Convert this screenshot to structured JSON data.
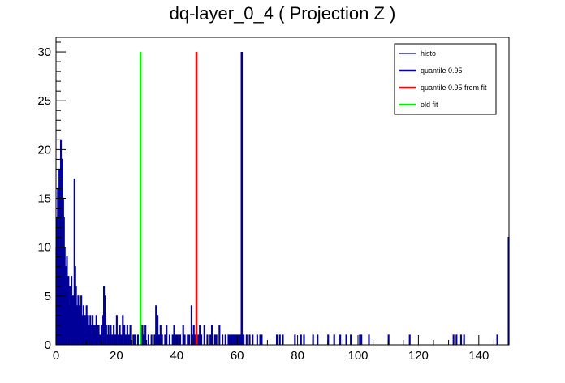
{
  "chart_data": {
    "type": "bar",
    "title": "dq-layer_0_4 ( Projection Z )",
    "xlabel": "",
    "ylabel": "",
    "xlim": [
      0,
      150
    ],
    "ylim": [
      0,
      31.5
    ],
    "x_ticks": [
      0,
      20,
      40,
      60,
      80,
      100,
      120,
      140
    ],
    "y_ticks": [
      0,
      5,
      10,
      15,
      20,
      25,
      30
    ],
    "grid": false,
    "legend_position": "top-right",
    "bin_width": 0.25,
    "colors": {
      "histo": "#000099",
      "quantile": "#000099",
      "quantile_fit": "#ff0000",
      "old_fit": "#00ee00"
    },
    "legend": [
      {
        "label": "histo",
        "color": "#000099"
      },
      {
        "label": "quantile 0.95",
        "color": "#000099"
      },
      {
        "label": "quantile 0.95 from fit",
        "color": "#ff0000"
      },
      {
        "label": "old fit",
        "color": "#00ee00"
      }
    ],
    "vertical_lines": [
      {
        "name": "quantile 0.95",
        "x": 61.5,
        "height": 30,
        "color": "#000099"
      },
      {
        "name": "quantile 0.95 from fit",
        "x": 46.5,
        "height": 30,
        "color": "#ff0000"
      },
      {
        "name": "old fit",
        "x": 28.0,
        "height": 30,
        "color": "#00ee00"
      }
    ],
    "bins": [
      [
        0.0,
        10
      ],
      [
        0.25,
        13
      ],
      [
        0.5,
        16
      ],
      [
        0.75,
        12
      ],
      [
        1.0,
        18
      ],
      [
        1.25,
        14
      ],
      [
        1.5,
        21
      ],
      [
        1.75,
        17
      ],
      [
        2.0,
        19
      ],
      [
        2.25,
        15
      ],
      [
        2.5,
        13
      ],
      [
        2.75,
        10
      ],
      [
        3.0,
        8
      ],
      [
        3.25,
        6
      ],
      [
        3.5,
        9
      ],
      [
        3.75,
        5
      ],
      [
        4.0,
        7
      ],
      [
        4.25,
        4
      ],
      [
        4.5,
        6
      ],
      [
        4.75,
        5
      ],
      [
        5.0,
        7
      ],
      [
        5.25,
        3
      ],
      [
        5.5,
        5
      ],
      [
        5.75,
        4
      ],
      [
        6.0,
        17
      ],
      [
        6.25,
        8
      ],
      [
        6.5,
        6
      ],
      [
        6.75,
        4
      ],
      [
        7.0,
        3
      ],
      [
        7.25,
        5
      ],
      [
        7.5,
        2
      ],
      [
        7.75,
        4
      ],
      [
        8.0,
        3
      ],
      [
        8.25,
        5
      ],
      [
        8.5,
        2
      ],
      [
        8.75,
        3
      ],
      [
        9.0,
        4
      ],
      [
        9.25,
        2
      ],
      [
        9.5,
        3
      ],
      [
        9.75,
        1
      ],
      [
        10.0,
        4
      ],
      [
        10.25,
        2
      ],
      [
        10.5,
        3
      ],
      [
        10.75,
        1
      ],
      [
        11.0,
        2
      ],
      [
        11.25,
        3
      ],
      [
        11.5,
        1
      ],
      [
        11.75,
        2
      ],
      [
        12.0,
        3
      ],
      [
        12.25,
        2
      ],
      [
        12.5,
        1
      ],
      [
        12.75,
        2
      ],
      [
        13.0,
        1
      ],
      [
        13.25,
        3
      ],
      [
        13.5,
        2
      ],
      [
        13.75,
        1
      ],
      [
        14.0,
        2
      ],
      [
        14.5,
        1
      ],
      [
        15.0,
        2
      ],
      [
        15.5,
        3
      ],
      [
        15.75,
        6
      ],
      [
        16.0,
        5
      ],
      [
        16.25,
        3
      ],
      [
        16.5,
        2
      ],
      [
        17.0,
        1
      ],
      [
        17.25,
        2
      ],
      [
        17.5,
        1
      ],
      [
        18.0,
        2
      ],
      [
        18.5,
        1
      ],
      [
        19.0,
        2
      ],
      [
        19.5,
        1
      ],
      [
        20.0,
        3
      ],
      [
        20.5,
        1
      ],
      [
        21.0,
        2
      ],
      [
        21.5,
        1
      ],
      [
        22.0,
        3
      ],
      [
        22.5,
        2
      ],
      [
        23.0,
        1
      ],
      [
        23.5,
        2
      ],
      [
        24.0,
        1
      ],
      [
        24.5,
        2
      ],
      [
        25.5,
        1
      ],
      [
        26.0,
        1
      ],
      [
        27.0,
        1
      ],
      [
        28.5,
        2
      ],
      [
        29.0,
        1
      ],
      [
        29.5,
        2
      ],
      [
        30.5,
        1
      ],
      [
        31.5,
        1
      ],
      [
        32.5,
        1
      ],
      [
        33.0,
        4
      ],
      [
        33.5,
        3
      ],
      [
        34.0,
        1
      ],
      [
        34.5,
        2
      ],
      [
        35.0,
        1
      ],
      [
        36.0,
        1
      ],
      [
        36.5,
        2
      ],
      [
        37.5,
        1
      ],
      [
        38.5,
        1
      ],
      [
        39.0,
        2
      ],
      [
        39.5,
        1
      ],
      [
        40.0,
        1
      ],
      [
        40.5,
        1
      ],
      [
        41.0,
        1
      ],
      [
        42.0,
        2
      ],
      [
        42.5,
        1
      ],
      [
        43.5,
        1
      ],
      [
        44.0,
        1
      ],
      [
        44.75,
        4
      ],
      [
        45.0,
        1
      ],
      [
        45.5,
        2
      ],
      [
        46.0,
        1
      ],
      [
        47.0,
        1
      ],
      [
        47.5,
        2
      ],
      [
        48.0,
        1
      ],
      [
        49.0,
        2
      ],
      [
        50.0,
        1
      ],
      [
        51.0,
        1
      ],
      [
        51.5,
        2
      ],
      [
        52.5,
        1
      ],
      [
        53.0,
        1
      ],
      [
        54.0,
        2
      ],
      [
        55.0,
        1
      ],
      [
        56.0,
        1
      ],
      [
        57.0,
        1
      ],
      [
        57.5,
        1
      ],
      [
        58.0,
        1
      ],
      [
        58.5,
        1
      ],
      [
        59.0,
        1
      ],
      [
        59.5,
        1
      ],
      [
        60.0,
        1
      ],
      [
        60.5,
        1
      ],
      [
        61.0,
        1
      ],
      [
        62.0,
        1
      ],
      [
        63.0,
        1
      ],
      [
        64.0,
        1
      ],
      [
        65.0,
        1
      ],
      [
        66.5,
        1
      ],
      [
        67.5,
        1
      ],
      [
        68.0,
        1
      ],
      [
        73.0,
        1
      ],
      [
        74.0,
        1
      ],
      [
        75.0,
        1
      ],
      [
        79.0,
        1
      ],
      [
        81.0,
        1
      ],
      [
        82.0,
        1
      ],
      [
        85.0,
        1
      ],
      [
        86.5,
        1
      ],
      [
        90.0,
        1
      ],
      [
        92.0,
        1
      ],
      [
        94.0,
        1
      ],
      [
        96.0,
        1
      ],
      [
        97.5,
        1
      ],
      [
        100.5,
        1
      ],
      [
        101.0,
        1
      ],
      [
        103.5,
        1
      ],
      [
        110.0,
        1
      ],
      [
        117.0,
        1
      ],
      [
        131.5,
        1
      ],
      [
        132.5,
        1
      ],
      [
        134.0,
        1
      ],
      [
        135.0,
        1
      ],
      [
        146.0,
        1
      ],
      [
        149.75,
        11
      ]
    ]
  }
}
